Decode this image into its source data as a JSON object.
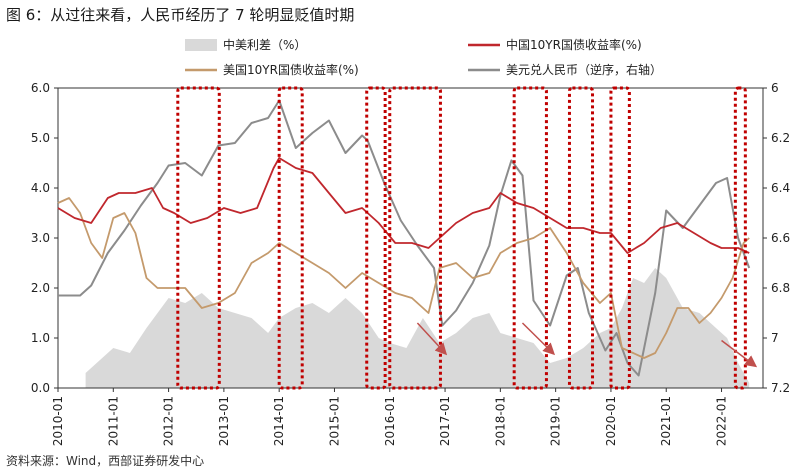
{
  "title": "图 6：从过往来看，人民币经历了 7 轮明显贬值时期",
  "source": "资料来源：Wind，西部证券研发中心",
  "chart_data": {
    "type": "line",
    "legend": [
      {
        "name": "中美利差（%）",
        "type": "area",
        "color": "#d9d9d9"
      },
      {
        "name": "中国10YR国债收益率(%)",
        "type": "line",
        "color": "#c0272d"
      },
      {
        "name": "美国10YR国债收益率(%)",
        "type": "line",
        "color": "#c49a6c"
      },
      {
        "name": "美元兑人民币（逆序，右轴）",
        "type": "line",
        "color": "#8c8c8c"
      }
    ],
    "x_tick_labels": [
      "2010-01",
      "2011-01",
      "2012-01",
      "2013-01",
      "2014-01",
      "2015-01",
      "2016-01",
      "2017-01",
      "2018-01",
      "2019-01",
      "2020-01",
      "2021-01",
      "2022-01"
    ],
    "y_left": {
      "min": 0,
      "max": 6,
      "ticks": [
        0,
        1,
        2,
        3,
        4,
        5,
        6
      ],
      "labels": [
        "0.0",
        "1.0",
        "2.0",
        "3.0",
        "4.0",
        "5.0",
        "6.0"
      ]
    },
    "y_right": {
      "min": 6.0,
      "max": 7.2,
      "reversed": true,
      "ticks": [
        6.0,
        6.2,
        6.4,
        6.6,
        6.8,
        7.0,
        7.2
      ],
      "labels": [
        "6",
        "6.2",
        "6.4",
        "6.6",
        "6.8",
        "7",
        "7.2"
      ]
    },
    "depreciation_periods": [
      [
        "2012-03",
        "2012-12"
      ],
      [
        "2014-01",
        "2014-06"
      ],
      [
        "2015-08",
        "2015-12"
      ],
      [
        "2016-01",
        "2016-12"
      ],
      [
        "2018-04",
        "2018-11"
      ],
      [
        "2019-04",
        "2019-09"
      ],
      [
        "2020-01",
        "2020-05"
      ],
      [
        "2022-04",
        "2022-06"
      ]
    ],
    "series": [
      {
        "name": "中美利差（%）",
        "x": [
          2010.5,
          2010.8,
          2011.0,
          2011.3,
          2011.6,
          2012.0,
          2012.3,
          2012.6,
          2012.9,
          2013.2,
          2013.5,
          2013.8,
          2014.0,
          2014.3,
          2014.6,
          2014.9,
          2015.2,
          2015.5,
          2015.8,
          2016.0,
          2016.3,
          2016.6,
          2016.9,
          2017.2,
          2017.5,
          2017.8,
          2018.0,
          2018.3,
          2018.6,
          2018.9,
          2019.2,
          2019.5,
          2019.8,
          2020.0,
          2020.2,
          2020.4,
          2020.6,
          2020.8,
          2021.0,
          2021.3,
          2021.6,
          2021.9,
          2022.1,
          2022.3,
          2022.5
        ],
        "values": [
          0.3,
          0.6,
          0.8,
          0.7,
          1.2,
          1.8,
          1.7,
          1.9,
          1.6,
          1.5,
          1.4,
          1.1,
          1.4,
          1.6,
          1.7,
          1.5,
          1.8,
          1.5,
          1.0,
          0.9,
          0.8,
          1.4,
          0.9,
          1.1,
          1.4,
          1.5,
          1.1,
          1.0,
          0.9,
          0.5,
          0.6,
          0.8,
          1.1,
          1.2,
          1.6,
          2.2,
          2.1,
          2.4,
          2.2,
          1.6,
          1.5,
          1.2,
          1.0,
          0.5,
          0.1
        ]
      },
      {
        "name": "中国10YR国债收益率(%)",
        "x": [
          2010.0,
          2010.3,
          2010.6,
          2010.9,
          2011.1,
          2011.4,
          2011.7,
          2011.9,
          2012.1,
          2012.4,
          2012.7,
          2013.0,
          2013.3,
          2013.6,
          2013.9,
          2014.0,
          2014.3,
          2014.6,
          2014.9,
          2015.2,
          2015.5,
          2015.8,
          2016.1,
          2016.4,
          2016.7,
          2016.9,
          2017.2,
          2017.5,
          2017.8,
          2018.0,
          2018.3,
          2018.6,
          2018.9,
          2019.2,
          2019.5,
          2019.8,
          2020.0,
          2020.3,
          2020.6,
          2020.9,
          2021.2,
          2021.5,
          2021.8,
          2022.0,
          2022.3,
          2022.5
        ],
        "values": [
          3.6,
          3.4,
          3.3,
          3.8,
          3.9,
          3.9,
          4.0,
          3.6,
          3.5,
          3.3,
          3.4,
          3.6,
          3.5,
          3.6,
          4.4,
          4.6,
          4.4,
          4.3,
          3.9,
          3.5,
          3.6,
          3.3,
          2.9,
          2.9,
          2.8,
          3.0,
          3.3,
          3.5,
          3.6,
          3.9,
          3.7,
          3.6,
          3.4,
          3.2,
          3.2,
          3.1,
          3.1,
          2.7,
          2.9,
          3.2,
          3.3,
          3.1,
          2.9,
          2.8,
          2.8,
          2.7
        ]
      },
      {
        "name": "美国10YR国债收益率(%)",
        "x": [
          2010.0,
          2010.2,
          2010.4,
          2010.6,
          2010.8,
          2011.0,
          2011.2,
          2011.4,
          2011.6,
          2011.8,
          2012.0,
          2012.3,
          2012.6,
          2012.9,
          2013.2,
          2013.5,
          2013.8,
          2014.0,
          2014.3,
          2014.6,
          2014.9,
          2015.2,
          2015.5,
          2015.8,
          2016.1,
          2016.4,
          2016.7,
          2016.9,
          2017.2,
          2017.5,
          2017.8,
          2018.0,
          2018.3,
          2018.6,
          2018.9,
          2019.2,
          2019.5,
          2019.8,
          2020.0,
          2020.2,
          2020.4,
          2020.6,
          2020.8,
          2021.0,
          2021.2,
          2021.4,
          2021.6,
          2021.8,
          2022.0,
          2022.2,
          2022.4,
          2022.5
        ],
        "values": [
          3.7,
          3.8,
          3.5,
          2.9,
          2.6,
          3.4,
          3.5,
          3.1,
          2.2,
          2.0,
          2.0,
          2.0,
          1.6,
          1.7,
          1.9,
          2.5,
          2.7,
          2.9,
          2.7,
          2.5,
          2.3,
          2.0,
          2.3,
          2.1,
          1.9,
          1.8,
          1.5,
          2.4,
          2.5,
          2.2,
          2.3,
          2.7,
          2.9,
          3.0,
          3.2,
          2.7,
          2.1,
          1.7,
          1.9,
          0.8,
          0.7,
          0.6,
          0.7,
          1.1,
          1.6,
          1.6,
          1.3,
          1.5,
          1.8,
          2.2,
          2.9,
          3.0
        ]
      },
      {
        "name": "美元兑人民币（逆序，右轴）",
        "x": [
          2010.0,
          2010.4,
          2010.6,
          2010.9,
          2011.2,
          2011.5,
          2011.8,
          2012.0,
          2012.3,
          2012.6,
          2012.9,
          2013.2,
          2013.5,
          2013.8,
          2014.0,
          2014.3,
          2014.6,
          2014.9,
          2015.2,
          2015.5,
          2015.6,
          2015.9,
          2016.2,
          2016.5,
          2016.8,
          2016.95,
          2017.2,
          2017.5,
          2017.8,
          2018.0,
          2018.2,
          2018.4,
          2018.6,
          2018.9,
          2019.2,
          2019.4,
          2019.6,
          2019.9,
          2020.1,
          2020.3,
          2020.5,
          2020.8,
          2021.0,
          2021.3,
          2021.6,
          2021.9,
          2022.1,
          2022.3,
          2022.5
        ],
        "values": [
          6.83,
          6.83,
          6.79,
          6.66,
          6.57,
          6.47,
          6.38,
          6.31,
          6.3,
          6.35,
          6.23,
          6.22,
          6.14,
          6.12,
          6.05,
          6.24,
          6.18,
          6.13,
          6.26,
          6.19,
          6.21,
          6.38,
          6.53,
          6.63,
          6.72,
          6.95,
          6.89,
          6.78,
          6.63,
          6.43,
          6.29,
          6.35,
          6.85,
          6.95,
          6.75,
          6.72,
          6.9,
          7.05,
          6.98,
          7.1,
          7.15,
          6.82,
          6.49,
          6.56,
          6.47,
          6.38,
          6.36,
          6.6,
          6.72
        ]
      }
    ]
  }
}
